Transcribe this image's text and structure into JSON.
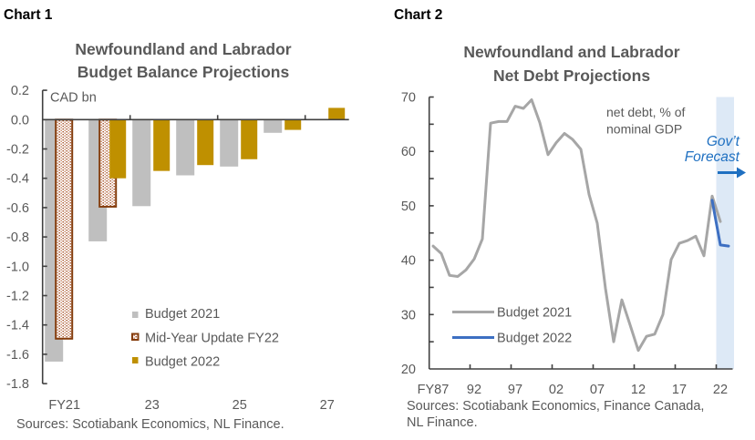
{
  "chart_data": [
    {
      "type": "bar",
      "label": "Chart 1",
      "title": "Newfoundland and Labrador Budget Balance Projections",
      "title_lines": [
        "Newfoundland and Labrador",
        "Budget Balance Projections"
      ],
      "xlabel": "",
      "ylabel": "CAD bn",
      "ylim": [
        -1.8,
        0.2
      ],
      "yticks": [
        0.2,
        0.0,
        -0.2,
        -0.4,
        -0.6,
        -0.8,
        -1.0,
        -1.2,
        -1.4,
        -1.6,
        -1.8
      ],
      "ytick_labels": [
        "0.2",
        "0.0",
        "-0.2",
        "-0.4",
        "-0.6",
        "-0.8",
        "-1.0",
        "-1.2",
        "-1.4",
        "-1.6",
        "-1.8"
      ],
      "categories": [
        "FY21",
        "FY22",
        "FY23",
        "FY24",
        "FY25",
        "FY26",
        "FY27"
      ],
      "xtick_labels": [
        {
          "category": "FY21",
          "text": "FY21"
        },
        {
          "category": "FY23",
          "text": "23"
        },
        {
          "category": "FY25",
          "text": "25"
        },
        {
          "category": "FY27",
          "text": "27"
        }
      ],
      "series": [
        {
          "name": "Budget 2021",
          "color": "#bfbfbf",
          "style": "solid",
          "values": [
            -1.65,
            -0.83,
            -0.59,
            -0.38,
            -0.32,
            -0.09,
            null
          ]
        },
        {
          "name": "Mid-Year Update FY22",
          "color": "#843c0c",
          "style": "dotted",
          "values": [
            -1.5,
            -0.6,
            null,
            null,
            null,
            null,
            null
          ]
        },
        {
          "name": "Budget 2022",
          "color": "#bf9000",
          "style": "solid",
          "values": [
            null,
            -0.4,
            -0.35,
            -0.31,
            -0.27,
            -0.07,
            0.08
          ]
        }
      ],
      "legend": {
        "position": "bottom-center"
      },
      "grid": false,
      "source": "Sources: Scotiabank Economics, NL Finance."
    },
    {
      "type": "line",
      "label": "Chart 2",
      "title": "Newfoundland and Labrador Net Debt Projections",
      "title_lines": [
        "Newfoundland and Labrador",
        "Net Debt Projections"
      ],
      "xlabel": "",
      "ylabel": "net debt, % of nominal GDP",
      "ylim": [
        20,
        70
      ],
      "yticks": [
        70,
        60,
        50,
        40,
        30,
        20
      ],
      "ytick_labels": [
        "70",
        "60",
        "50",
        "40",
        "30",
        "20"
      ],
      "minor_ytick_step": 5,
      "x": [
        "FY87",
        "FY88",
        "FY89",
        "FY90",
        "FY91",
        "FY92",
        "FY93",
        "FY94",
        "FY95",
        "FY96",
        "FY97",
        "FY98",
        "FY99",
        "FY00",
        "FY01",
        "FY02",
        "FY03",
        "FY04",
        "FY05",
        "FY06",
        "FY07",
        "FY08",
        "FY09",
        "FY10",
        "FY11",
        "FY12",
        "FY13",
        "FY14",
        "FY15",
        "FY16",
        "FY17",
        "FY18",
        "FY19",
        "FY20",
        "FY21",
        "FY22",
        "FY23"
      ],
      "xtick_labels": [
        {
          "x": "FY87",
          "text": "FY87"
        },
        {
          "x": "FY92",
          "text": "92"
        },
        {
          "x": "FY97",
          "text": "97"
        },
        {
          "x": "FY02",
          "text": "02"
        },
        {
          "x": "FY07",
          "text": "07"
        },
        {
          "x": "FY12",
          "text": "12"
        },
        {
          "x": "FY17",
          "text": "17"
        },
        {
          "x": "FY22",
          "text": "22"
        }
      ],
      "series": [
        {
          "name": "Budget 2021",
          "color": "#a6a6a6",
          "values": [
            42.6,
            41.2,
            37.2,
            37.0,
            38.2,
            40.2,
            43.9,
            65.2,
            65.5,
            65.5,
            68.3,
            67.9,
            69.5,
            65.3,
            59.4,
            61.6,
            63.3,
            62.2,
            60.4,
            52.1,
            46.8,
            34.8,
            25.0,
            32.7,
            28.1,
            23.4,
            26.0,
            26.4,
            30.0,
            40.1,
            43.1,
            43.6,
            44.4,
            40.8,
            51.8,
            47.1,
            null
          ]
        },
        {
          "name": "Budget 2022",
          "color": "#3d6fc2",
          "values": [
            null,
            null,
            null,
            null,
            null,
            null,
            null,
            null,
            null,
            null,
            null,
            null,
            null,
            null,
            null,
            null,
            null,
            null,
            null,
            null,
            null,
            null,
            null,
            null,
            null,
            null,
            null,
            null,
            null,
            null,
            null,
            null,
            null,
            null,
            51.0,
            42.8,
            42.6
          ]
        }
      ],
      "legend": {
        "position": "bottom-left"
      },
      "grid": false,
      "annotations": {
        "units_note": [
          "net debt, % of",
          "nominal GDP"
        ],
        "forecast_label": [
          "Gov’t",
          "Forecast"
        ],
        "forecast_arrow": "arrow-right",
        "forecast_region": {
          "from": "FY22",
          "to": "FY23",
          "color": "#dde9f6"
        },
        "forecast_color": "#1f70c1"
      },
      "source_lines": [
        "Sources: Scotiabank Economics, Finance Canada,",
        "NL Finance."
      ]
    }
  ]
}
